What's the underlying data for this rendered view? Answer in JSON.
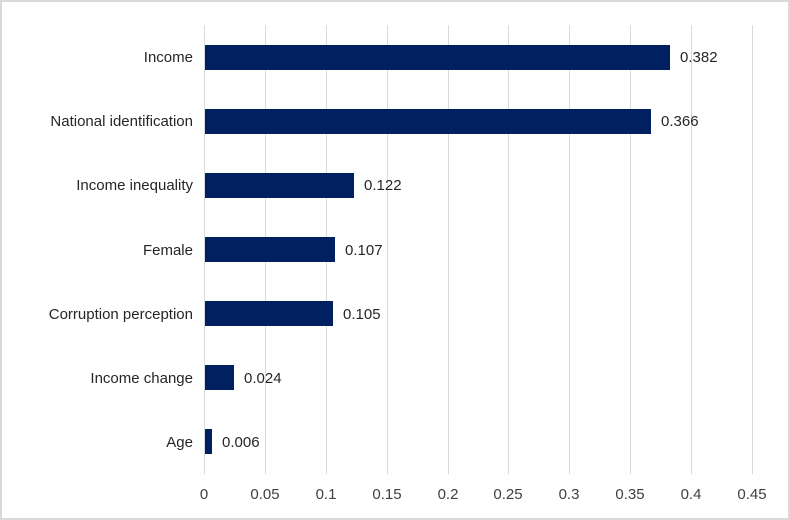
{
  "chart_data": {
    "type": "bar",
    "orientation": "horizontal",
    "title": "",
    "xlabel": "",
    "ylabel": "",
    "categories": [
      "Income",
      "National identification",
      "Income inequality",
      "Female",
      "Corruption perception",
      "Income change",
      "Age"
    ],
    "values": [
      0.382,
      0.366,
      0.122,
      0.107,
      0.105,
      0.024,
      0.006
    ],
    "data_labels": [
      "0.382",
      "0.366",
      "0.122",
      "0.107",
      "0.105",
      "0.024",
      "0.006"
    ],
    "xlim": [
      0,
      0.45
    ],
    "x_ticks": [
      0,
      0.05,
      0.1,
      0.15,
      0.2,
      0.25,
      0.3,
      0.35,
      0.4,
      0.45
    ],
    "x_tick_labels": [
      "0",
      "0.05",
      "0.1",
      "0.15",
      "0.2",
      "0.25",
      "0.3",
      "0.35",
      "0.4",
      "0.45"
    ],
    "grid": "vertical-only",
    "legend": "none",
    "colors": {
      "bar": "#002060",
      "gridline": "#d9d9d9",
      "category_text": "#262626",
      "data_label_text": "#262626",
      "tick_text": "#404040",
      "background": "#ffffff",
      "frame_border": "#d9d9d9"
    }
  }
}
